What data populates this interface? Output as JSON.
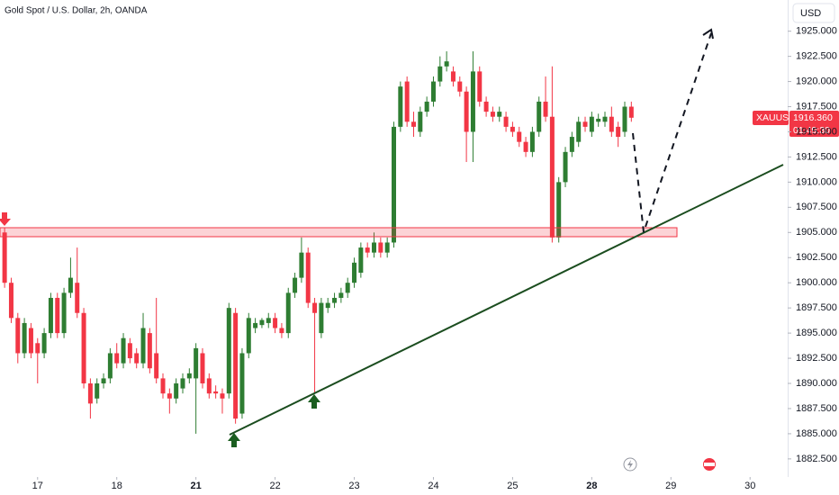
{
  "chart_data": {
    "type": "candlestick",
    "title": "Gold Spot / U.S. Dollar, 2h, OANDA",
    "currency": "USD",
    "price_tag": {
      "symbol": "XAUUSD",
      "price": "1916.360",
      "countdown": "01:49:30"
    },
    "up_color": "#2e7d32",
    "down_color": "#f23645",
    "x": [
      0,
      1,
      2,
      3,
      4,
      5,
      6,
      7,
      8,
      9,
      10,
      11,
      12,
      13,
      14,
      15,
      16,
      17,
      18,
      19,
      20,
      21,
      22,
      23,
      24,
      25,
      26,
      27,
      28,
      29,
      30,
      31,
      32,
      33,
      34,
      35,
      36,
      37,
      38,
      39,
      40,
      41,
      42,
      43,
      44,
      45,
      46,
      47,
      48,
      49,
      50,
      51,
      52,
      53,
      54,
      55,
      56,
      57,
      58,
      59,
      60,
      61,
      62,
      63,
      64,
      65,
      66,
      67,
      68,
      69,
      70,
      71,
      72,
      73,
      74,
      75,
      76,
      77,
      78,
      79,
      80,
      81,
      82,
      83,
      84,
      85,
      86,
      87,
      88,
      89,
      90,
      91,
      92,
      93,
      94,
      95
    ],
    "open": [
      1905,
      1900,
      1896.5,
      1893,
      1895.5,
      1894,
      1893,
      1895,
      1898.5,
      1895,
      1899,
      1900,
      1897,
      1890,
      1888.5,
      1890,
      1890.5,
      1893,
      1892,
      1894,
      1893,
      1892,
      1895,
      1893,
      1890.5,
      1889,
      1888.5,
      1889.5,
      1890.5,
      1890.5,
      1893,
      1890.5,
      1889.2,
      1889,
      1889,
      1897,
      1887,
      1893,
      1895.5,
      1895.8,
      1896,
      1896.5,
      1895.5,
      1895,
      1899,
      1900.5,
      1903,
      1898,
      1895,
      1897.5,
      1898,
      1898.5,
      1899,
      1900,
      1901,
      1903.5,
      1903,
      1904,
      1903,
      1904,
      1915.5,
      1920,
      1916,
      1915,
      1917,
      1918,
      1920,
      1921.5,
      1921,
      1920,
      1919,
      1915,
      1921,
      1918,
      1917,
      1916.5,
      1916.5,
      1915.5,
      1915,
      1914,
      1913,
      1915,
      1918,
      1916.5,
      1904.5,
      1910,
      1913,
      1914,
      1916,
      1915,
      1916,
      1916,
      1916.5,
      1915.5,
      1915,
      1917.5
    ],
    "high": [
      1905.5,
      1900.5,
      1897,
      1896.5,
      1896,
      1894.5,
      1895.5,
      1899,
      1899,
      1899.5,
      1902.5,
      1903.5,
      1897.5,
      1890.5,
      1890.5,
      1891,
      1893.5,
      1894,
      1895,
      1894.5,
      1893.5,
      1897,
      1895.5,
      1898.5,
      1891,
      1889.5,
      1890.5,
      1891,
      1891.5,
      1894,
      1893.5,
      1891,
      1889.8,
      1889.5,
      1898,
      1897.5,
      1893.5,
      1897,
      1896.5,
      1896.5,
      1897,
      1897,
      1896,
      1899.5,
      1901,
      1904.5,
      1903.5,
      1898.5,
      1898.5,
      1898.5,
      1899,
      1899.5,
      1900.5,
      1902.5,
      1904,
      1904,
      1905,
      1904.5,
      1904.5,
      1916,
      1920,
      1920.5,
      1917,
      1917.5,
      1918.5,
      1920.5,
      1922.5,
      1923,
      1921.5,
      1920.5,
      1919.5,
      1923,
      1921.5,
      1918.5,
      1917.5,
      1917.5,
      1917,
      1916,
      1915.5,
      1914.5,
      1915.5,
      1918.5,
      1920.5,
      1921.5,
      1910.5,
      1913.5,
      1915,
      1916.5,
      1916.5,
      1917,
      1916.8,
      1917,
      1917.5,
      1916,
      1918,
      1918
    ],
    "low": [
      1899.5,
      1896,
      1892,
      1892.5,
      1892.5,
      1890,
      1892.5,
      1894.5,
      1894.5,
      1894.5,
      1898.5,
      1896.5,
      1889.5,
      1886.5,
      1888,
      1889.5,
      1890,
      1891.5,
      1891.5,
      1892,
      1891.5,
      1891.5,
      1891,
      1890,
      1888.5,
      1887,
      1888,
      1889,
      1890,
      1885,
      1889.5,
      1888.5,
      1888.5,
      1887,
      1888.5,
      1886,
      1886.5,
      1892.5,
      1895,
      1895.5,
      1895.5,
      1895,
      1894.5,
      1894.5,
      1898.5,
      1900,
      1897.5,
      1889,
      1894.5,
      1897,
      1897.5,
      1898,
      1898.5,
      1899.5,
      1900.5,
      1902.5,
      1902.5,
      1902.5,
      1902.5,
      1903.5,
      1915,
      1915.5,
      1914.5,
      1914.5,
      1916.5,
      1917.5,
      1919.5,
      1921,
      1919.5,
      1918.5,
      1912,
      1912,
      1917.5,
      1916.5,
      1916,
      1916,
      1915,
      1914.5,
      1913.5,
      1912.5,
      1912.5,
      1914.5,
      1916,
      1904,
      1904,
      1909.5,
      1912.5,
      1913.5,
      1915,
      1914.5,
      1915.5,
      1915.5,
      1914.5,
      1913.5,
      1914.5,
      1916
    ],
    "close": [
      1900,
      1896.5,
      1893,
      1896,
      1893,
      1893,
      1895,
      1898.5,
      1895,
      1899,
      1900.5,
      1897,
      1890,
      1888,
      1890,
      1890.5,
      1893,
      1892,
      1894.5,
      1892.5,
      1892,
      1895.5,
      1891.5,
      1890.5,
      1889,
      1888.5,
      1890,
      1890.5,
      1891,
      1893.5,
      1890,
      1889,
      1889,
      1888.5,
      1897.5,
      1886.5,
      1893,
      1896.5,
      1896,
      1896.3,
      1896.5,
      1895.5,
      1895,
      1899,
      1900.5,
      1903,
      1898,
      1897,
      1898,
      1898,
      1898.5,
      1899,
      1900,
      1902,
      1903.5,
      1903,
      1904,
      1903,
      1904,
      1915.5,
      1919.5,
      1916,
      1915.5,
      1917,
      1918,
      1920,
      1921.5,
      1922,
      1920,
      1919,
      1915,
      1921,
      1918,
      1917,
      1916.5,
      1917,
      1915.5,
      1915,
      1914,
      1913,
      1915,
      1918,
      1916.5,
      1904.5,
      1910,
      1913,
      1914.5,
      1916,
      1915.5,
      1916.5,
      1916.3,
      1916.5,
      1915,
      1914.5,
      1917.5,
      1916.4
    ],
    "xlim": [
      -0.7,
      118.7
    ],
    "xticks": [
      {
        "value": 5,
        "label": "17"
      },
      {
        "value": 17,
        "label": "18"
      },
      {
        "value": 29,
        "label": "21"
      },
      {
        "value": 41,
        "label": "22"
      },
      {
        "value": 53,
        "label": "23"
      },
      {
        "value": 65,
        "label": "24"
      },
      {
        "value": 77,
        "label": "25"
      },
      {
        "value": 89,
        "label": "28"
      },
      {
        "value": 101,
        "label": "29"
      },
      {
        "value": 113,
        "label": "30"
      }
    ],
    "ylim": [
      1880.7,
      1928.1
    ],
    "yticks": [
      {
        "value": 1882.5,
        "label": "1882.500"
      },
      {
        "value": 1885,
        "label": "1885.000"
      },
      {
        "value": 1887.5,
        "label": "1887.500"
      },
      {
        "value": 1890,
        "label": "1890.000"
      },
      {
        "value": 1892.5,
        "label": "1892.500"
      },
      {
        "value": 1895,
        "label": "1895.000"
      },
      {
        "value": 1897.5,
        "label": "1897.500"
      },
      {
        "value": 1900,
        "label": "1900.000"
      },
      {
        "value": 1902.5,
        "label": "1902.500"
      },
      {
        "value": 1905,
        "label": "1905.000"
      },
      {
        "value": 1907.5,
        "label": "1907.500"
      },
      {
        "value": 1910,
        "label": "1910.000"
      },
      {
        "value": 1912.5,
        "label": "1912.500"
      },
      {
        "value": 1915,
        "label": "1915.000"
      },
      {
        "value": 1917.5,
        "label": "1917.500"
      },
      {
        "value": 1920,
        "label": "1920.000"
      },
      {
        "value": 1922.5,
        "label": "1922.500"
      },
      {
        "value": 1925,
        "label": "1925.000"
      }
    ]
  }
}
